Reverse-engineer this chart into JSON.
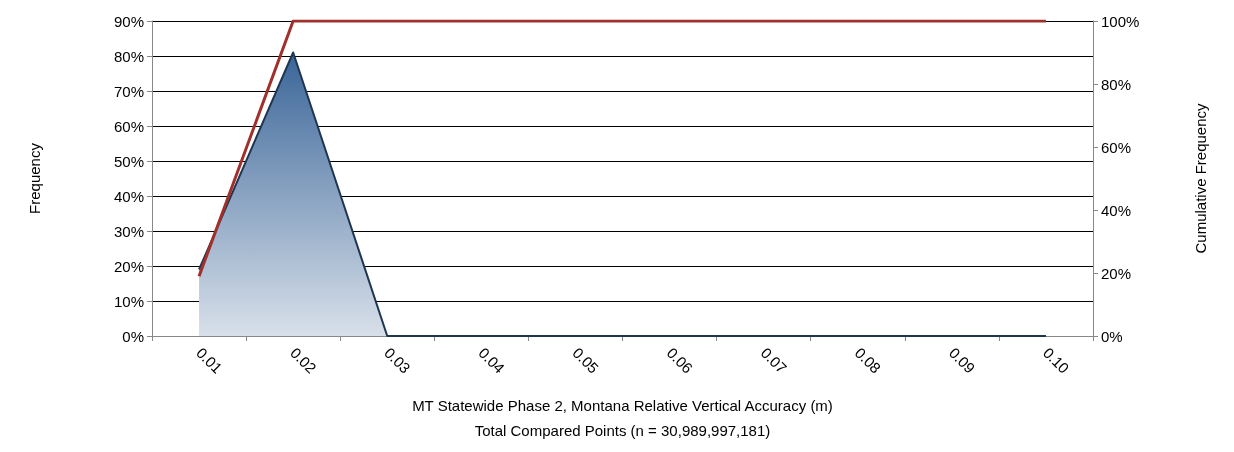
{
  "chart_data": {
    "type": "area",
    "categories": [
      "0.01",
      "0.02",
      "0.03",
      "0.04",
      "0.05",
      "0.06",
      "0.07",
      "0.08",
      "0.09",
      "0.10"
    ],
    "series": [
      {
        "type": "area",
        "color": "#3a6598",
        "values": [
          19,
          81,
          0,
          0,
          0,
          0,
          0,
          0,
          0,
          0
        ]
      },
      {
        "type": "line",
        "axis": "y2",
        "color": "#a0302c",
        "values": [
          19,
          100,
          100,
          100,
          100,
          100,
          100,
          100,
          100,
          100
        ]
      }
    ],
    "ylim": [
      0,
      90
    ],
    "yticks": [
      {
        "value": 0,
        "label": "0%"
      },
      {
        "value": 10,
        "label": "10%"
      },
      {
        "value": 20,
        "label": "20%"
      },
      {
        "value": 30,
        "label": "30%"
      },
      {
        "value": 40,
        "label": "40%"
      },
      {
        "value": 50,
        "label": "50%"
      },
      {
        "value": 60,
        "label": "60%"
      },
      {
        "value": 70,
        "label": "70%"
      },
      {
        "value": 80,
        "label": "80%"
      },
      {
        "value": 90,
        "label": "90%"
      }
    ],
    "y2lim": [
      0,
      100
    ],
    "y2ticks": [
      {
        "value": 0,
        "label": "0%"
      },
      {
        "value": 20,
        "label": "20%"
      },
      {
        "value": 40,
        "label": "40%"
      },
      {
        "value": 60,
        "label": "60%"
      },
      {
        "value": 80,
        "label": "80%"
      },
      {
        "value": 100,
        "label": "100%"
      }
    ],
    "ylabel": "Frequency",
    "y2label": "Cumulative Frequency",
    "xlabel": "MT Statewide Phase 2, Montana Relative Vertical Accuracy (m)",
    "annotations": [
      "Total Compared Points (n = 30,989,997,181)"
    ],
    "grid": "y",
    "marker": "none"
  }
}
